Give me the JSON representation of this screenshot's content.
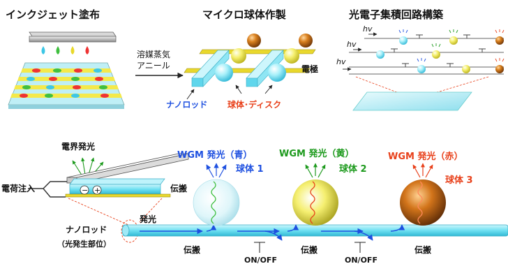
{
  "top": {
    "inkjet_title": "インクジェット塗布",
    "micro_title": "マイクロ球体作製",
    "circuit_title": "光電子集積回路構築",
    "anneal_line1": "溶媒蒸気",
    "anneal_line2": "アニール",
    "electrode": "電極",
    "nanorod": "ナノロッド",
    "sphere_disk": "球体･ディスク",
    "hv": "hv"
  },
  "bottom": {
    "el_emission": "電界発光",
    "charge_injection": "電荷注入",
    "propagation": "伝搬",
    "emission": "発光",
    "nanorod": "ナノロッド",
    "nanorod_sub": "（光発生部位）",
    "onoff": "ON/OFF",
    "minus": "−",
    "plus": "+",
    "wgm_blue": "WGM 発光（青）",
    "wgm_yellow": "WGM 発光（黄）",
    "wgm_red": "WGM 発光（赤）",
    "sphere1": "球体 1",
    "sphere2": "球体 2",
    "sphere3": "球体 3"
  },
  "colors": {
    "blue": "#1e50e0",
    "green": "#1d9a1d",
    "red": "#e8401a",
    "cyan": "#6fe0f2",
    "yellow": "#f2ea45"
  }
}
